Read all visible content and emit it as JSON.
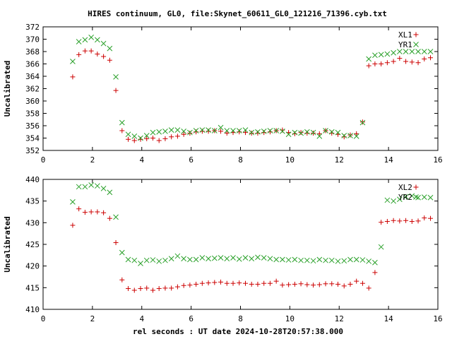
{
  "title": "HIRES continuum, GL0, file:Skynet_60611_GL0_121216_71396.cyb.txt",
  "xlabel": "rel seconds : UT date 2024-10-28T20:57:38.000",
  "colors": {
    "red": "#cc0000",
    "green": "#2aa02a"
  },
  "chart_data": [
    {
      "type": "scatter",
      "ylabel": "Uncalibrated",
      "xlim": [
        0,
        16
      ],
      "ylim": [
        352,
        372
      ],
      "xticks": [
        0,
        2,
        4,
        6,
        8,
        10,
        12,
        14,
        16
      ],
      "yticks": [
        352,
        354,
        356,
        358,
        360,
        362,
        364,
        366,
        368,
        370,
        372
      ],
      "legend_position": "top-right",
      "series": [
        {
          "name": "XL1",
          "marker": "plus",
          "color": "red",
          "x": [
            1.2,
            1.45,
            1.7,
            1.95,
            2.2,
            2.45,
            2.7,
            2.95,
            3.2,
            3.45,
            3.7,
            3.95,
            4.2,
            4.45,
            4.7,
            4.95,
            5.2,
            5.45,
            5.7,
            5.95,
            6.2,
            6.45,
            6.7,
            6.95,
            7.2,
            7.45,
            7.7,
            7.95,
            8.2,
            8.45,
            8.7,
            8.95,
            9.2,
            9.45,
            9.7,
            9.95,
            10.2,
            10.45,
            10.7,
            10.95,
            11.2,
            11.45,
            11.7,
            11.95,
            12.2,
            12.45,
            12.7,
            12.95,
            13.2,
            13.45,
            13.7,
            13.95,
            14.2,
            14.45,
            14.7,
            14.95,
            15.2,
            15.45,
            15.7
          ],
          "y": [
            363.9,
            367.5,
            368.1,
            368.1,
            367.6,
            367.2,
            366.6,
            361.7,
            355.2,
            353.8,
            353.6,
            353.8,
            353.9,
            354.0,
            353.6,
            353.9,
            354.2,
            354.3,
            354.6,
            354.8,
            355.0,
            355.1,
            355.1,
            355.2,
            355.1,
            354.8,
            354.9,
            355.0,
            354.9,
            354.8,
            354.8,
            354.9,
            355.0,
            355.2,
            355.3,
            354.9,
            354.7,
            354.9,
            354.8,
            354.8,
            354.7,
            355.2,
            354.8,
            354.6,
            354.2,
            354.5,
            354.7,
            356.6,
            365.7,
            366.0,
            366.0,
            366.2,
            366.4,
            366.9,
            366.4,
            366.3,
            366.2,
            366.8,
            367.0
          ],
          "xalign": "offset"
        },
        {
          "name": "YR1",
          "marker": "x",
          "color": "green",
          "x": [
            1.2,
            1.45,
            1.7,
            1.95,
            2.2,
            2.45,
            2.7,
            2.95,
            3.2,
            3.45,
            3.7,
            3.95,
            4.2,
            4.45,
            4.7,
            4.95,
            5.2,
            5.45,
            5.7,
            5.95,
            6.2,
            6.45,
            6.7,
            6.95,
            7.2,
            7.45,
            7.7,
            7.95,
            8.2,
            8.45,
            8.7,
            8.95,
            9.2,
            9.45,
            9.7,
            9.95,
            10.2,
            10.45,
            10.7,
            10.95,
            11.2,
            11.45,
            11.7,
            11.95,
            12.2,
            12.45,
            12.7,
            12.95,
            13.2,
            13.45,
            13.7,
            13.95,
            14.2,
            14.45,
            14.7,
            14.95,
            15.2,
            15.45,
            15.7
          ],
          "y": [
            366.4,
            369.6,
            369.9,
            370.3,
            369.9,
            369.3,
            368.5,
            363.9,
            356.5,
            354.6,
            354.3,
            354.0,
            354.4,
            354.9,
            355.0,
            355.1,
            355.3,
            355.3,
            355.1,
            354.9,
            355.2,
            355.3,
            355.3,
            355.2,
            355.7,
            355.2,
            355.2,
            355.2,
            355.3,
            354.9,
            355.0,
            355.1,
            355.2,
            355.2,
            355.1,
            354.6,
            354.9,
            354.8,
            355.0,
            354.9,
            354.3,
            355.2,
            355.0,
            354.9,
            354.4,
            354.4,
            354.3,
            356.5,
            366.8,
            367.4,
            367.5,
            367.6,
            367.8,
            368.0,
            368.0,
            368.0,
            368.0,
            368.0,
            368.0
          ],
          "xalign": "offset"
        }
      ]
    },
    {
      "type": "scatter",
      "ylabel": "Uncalibrated",
      "xlim": [
        0,
        16
      ],
      "ylim": [
        410,
        440
      ],
      "xticks": [
        0,
        2,
        4,
        6,
        8,
        10,
        12,
        14,
        16
      ],
      "yticks": [
        410,
        415,
        420,
        425,
        430,
        435,
        440
      ],
      "legend_position": "top-right",
      "series": [
        {
          "name": "XL2",
          "marker": "plus",
          "color": "red",
          "x": [
            1.2,
            1.45,
            1.7,
            1.95,
            2.2,
            2.45,
            2.7,
            2.95,
            3.2,
            3.45,
            3.7,
            3.95,
            4.2,
            4.45,
            4.7,
            4.95,
            5.2,
            5.45,
            5.7,
            5.95,
            6.2,
            6.45,
            6.7,
            6.95,
            7.2,
            7.45,
            7.7,
            7.95,
            8.2,
            8.45,
            8.7,
            8.95,
            9.2,
            9.45,
            9.7,
            9.95,
            10.2,
            10.45,
            10.7,
            10.95,
            11.2,
            11.45,
            11.7,
            11.95,
            12.2,
            12.45,
            12.7,
            12.95,
            13.2,
            13.45,
            13.7,
            13.95,
            14.2,
            14.45,
            14.7,
            14.95,
            15.2,
            15.45,
            15.7
          ],
          "y": [
            429.4,
            433.2,
            432.4,
            432.5,
            432.5,
            432.3,
            431.0,
            425.4,
            416.8,
            414.8,
            414.4,
            414.8,
            414.9,
            414.4,
            414.8,
            414.9,
            414.9,
            415.2,
            415.5,
            415.6,
            415.8,
            416.0,
            416.1,
            416.2,
            416.3,
            416.0,
            416.0,
            416.1,
            416.0,
            415.8,
            415.8,
            416.0,
            416.0,
            416.5,
            415.6,
            415.7,
            415.8,
            415.9,
            415.7,
            415.6,
            415.7,
            415.9,
            415.9,
            415.8,
            415.4,
            415.8,
            416.5,
            416.0,
            414.9,
            418.5,
            430.1,
            430.3,
            430.5,
            430.4,
            430.5,
            430.3,
            430.4,
            431.1,
            431.0
          ],
          "xalign": "offset"
        },
        {
          "name": "YR2",
          "marker": "x",
          "color": "green",
          "x": [
            1.2,
            1.45,
            1.7,
            1.95,
            2.2,
            2.45,
            2.7,
            2.95,
            3.2,
            3.45,
            3.7,
            3.95,
            4.2,
            4.45,
            4.7,
            4.95,
            5.2,
            5.45,
            5.7,
            5.95,
            6.2,
            6.45,
            6.7,
            6.95,
            7.2,
            7.45,
            7.7,
            7.95,
            8.2,
            8.45,
            8.7,
            8.95,
            9.2,
            9.45,
            9.7,
            9.95,
            10.2,
            10.45,
            10.7,
            10.95,
            11.2,
            11.45,
            11.7,
            11.95,
            12.2,
            12.45,
            12.7,
            12.95,
            13.2,
            13.45,
            13.7,
            13.95,
            14.2,
            14.45,
            14.7,
            14.95,
            15.2,
            15.45,
            15.7
          ],
          "y": [
            434.8,
            438.3,
            438.3,
            438.7,
            438.5,
            437.9,
            437.0,
            431.3,
            423.1,
            421.5,
            421.3,
            420.6,
            421.3,
            421.4,
            421.1,
            421.3,
            421.7,
            422.3,
            421.7,
            421.5,
            421.5,
            421.9,
            421.7,
            421.8,
            421.9,
            421.7,
            421.9,
            421.6,
            421.9,
            421.7,
            422.0,
            421.9,
            421.7,
            421.5,
            421.5,
            421.4,
            421.5,
            421.3,
            421.3,
            421.2,
            421.5,
            421.3,
            421.3,
            421.1,
            421.2,
            421.5,
            421.5,
            421.4,
            421.1,
            420.8,
            424.4,
            435.2,
            435.0,
            435.4,
            436.0,
            436.2,
            435.8,
            435.9,
            435.8
          ],
          "xalign": "offset"
        }
      ]
    }
  ]
}
